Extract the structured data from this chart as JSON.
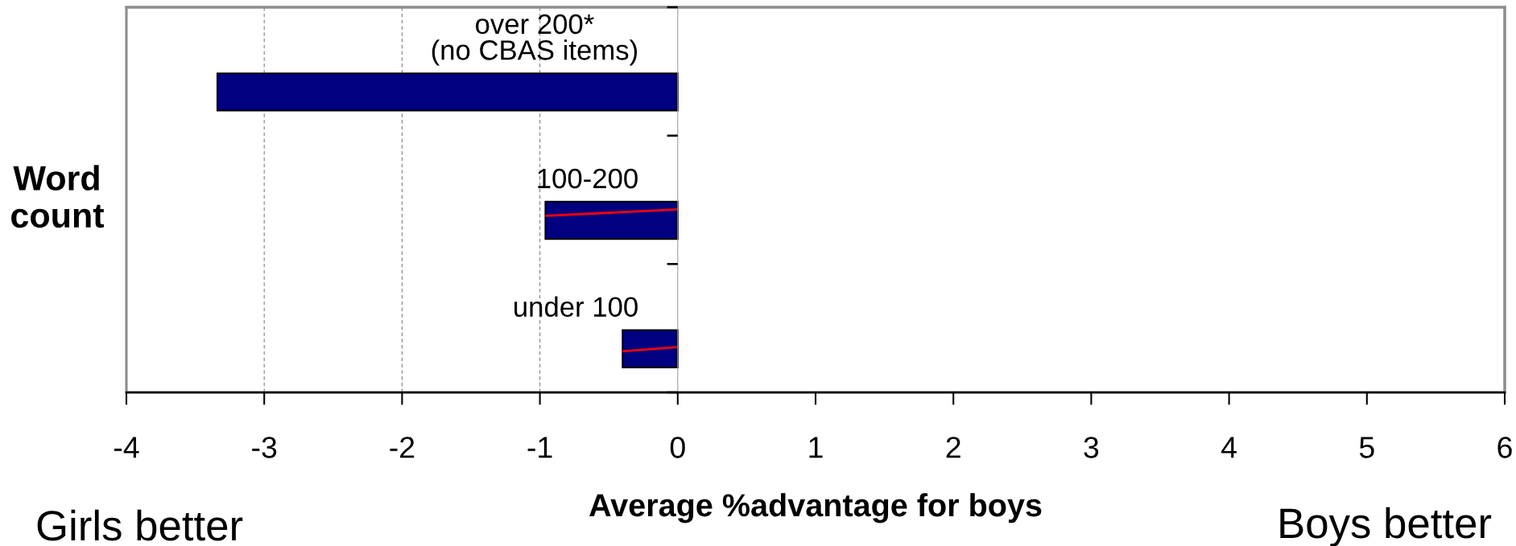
{
  "chart_data": {
    "type": "bar",
    "orientation": "horizontal",
    "categories": [
      "over 200*\n(no CBAS items)",
      "100-200",
      "under 100"
    ],
    "values": [
      -3.34,
      -0.96,
      -0.4
    ],
    "color": "#000080",
    "xlim": [
      -4,
      6
    ],
    "xticks": [
      -4,
      -3,
      -2,
      -1,
      0,
      1,
      2,
      3,
      4,
      5,
      6
    ],
    "xlabel": "Average %advantage for boys",
    "ylabel": "Word\ncount",
    "ref_lines": [
      {
        "axis": "x",
        "value": -3,
        "color": "#808080",
        "line_style": "dashed"
      },
      {
        "axis": "x",
        "value": -2,
        "color": "#808080",
        "line_style": "dashed"
      },
      {
        "axis": "x",
        "value": -1,
        "color": "#808080",
        "line_style": "dashed"
      }
    ],
    "annotations": [
      "Girls better",
      "Boys better"
    ]
  }
}
